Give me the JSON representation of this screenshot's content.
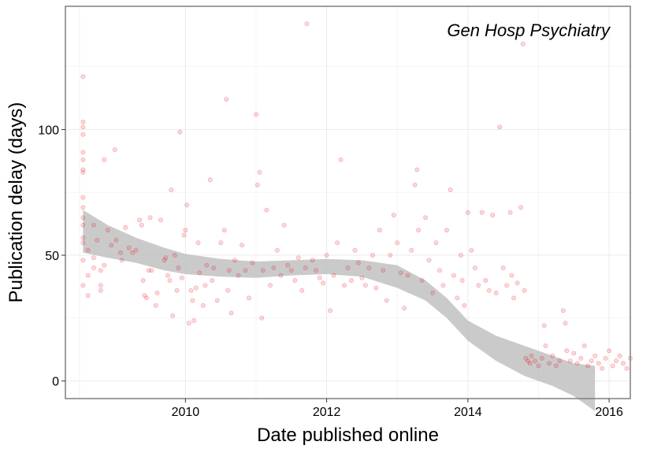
{
  "chart_data": {
    "type": "scatter",
    "title": "",
    "annotation": "Gen Hosp Psychiatry",
    "xlabel": "Date published online",
    "ylabel": "Publication delay (days)",
    "xlim": [
      2008.3,
      2016.3
    ],
    "ylim": [
      -7,
      149
    ],
    "x_ticks": [
      2010,
      2012,
      2014,
      2016
    ],
    "y_ticks": [
      0,
      50,
      100
    ],
    "x_tick_labels": [
      "2010",
      "2012",
      "2014",
      "2016"
    ],
    "y_tick_labels": [
      "0",
      "50",
      "100"
    ],
    "grid": true,
    "point_color": "#e8000b",
    "point_opacity": 0.15,
    "ribbon_color": "#bdbdbd",
    "legend": "none",
    "smooth_band": {
      "x": [
        2008.55,
        2008.9,
        2009.3,
        2009.7,
        2010.0,
        2010.5,
        2011.0,
        2011.5,
        2012.0,
        2012.5,
        2013.0,
        2013.4,
        2013.7,
        2014.0,
        2014.4,
        2014.8,
        2015.2,
        2015.5,
        2015.8
      ],
      "upper": [
        68,
        62,
        57,
        53,
        50.5,
        48.5,
        47.5,
        48,
        48.5,
        48,
        46,
        40,
        33,
        24,
        18,
        14,
        10,
        7,
        6
      ],
      "lower": [
        51,
        49,
        47,
        44,
        42.5,
        41.5,
        41,
        42,
        42.5,
        41.5,
        37,
        32,
        25,
        16,
        8,
        2,
        -2,
        -6,
        -12
      ]
    },
    "points": [
      [
        2008.55,
        121
      ],
      [
        2008.55,
        103
      ],
      [
        2008.55,
        101
      ],
      [
        2008.55,
        98
      ],
      [
        2008.55,
        91
      ],
      [
        2008.55,
        88
      ],
      [
        2008.55,
        84
      ],
      [
        2008.55,
        83
      ],
      [
        2008.55,
        73
      ],
      [
        2008.55,
        69
      ],
      [
        2008.55,
        65
      ],
      [
        2008.55,
        62
      ],
      [
        2008.55,
        57
      ],
      [
        2008.55,
        55
      ],
      [
        2008.55,
        48
      ],
      [
        2008.55,
        38
      ],
      [
        2008.62,
        52
      ],
      [
        2008.62,
        42
      ],
      [
        2008.62,
        34
      ],
      [
        2008.7,
        49
      ],
      [
        2008.7,
        45
      ],
      [
        2008.7,
        62
      ],
      [
        2008.75,
        56
      ],
      [
        2008.8,
        36
      ],
      [
        2008.8,
        38
      ],
      [
        2008.8,
        44
      ],
      [
        2008.85,
        46
      ],
      [
        2008.85,
        88
      ],
      [
        2008.9,
        60
      ],
      [
        2008.95,
        54
      ],
      [
        2009.0,
        92
      ],
      [
        2009.02,
        56
      ],
      [
        2009.08,
        51
      ],
      [
        2009.1,
        48
      ],
      [
        2009.15,
        61
      ],
      [
        2009.2,
        53
      ],
      [
        2009.25,
        51
      ],
      [
        2009.3,
        52
      ],
      [
        2009.35,
        64
      ],
      [
        2009.38,
        62
      ],
      [
        2009.4,
        40
      ],
      [
        2009.42,
        34
      ],
      [
        2009.45,
        33
      ],
      [
        2009.48,
        44
      ],
      [
        2009.5,
        65
      ],
      [
        2009.52,
        44
      ],
      [
        2009.58,
        30
      ],
      [
        2009.6,
        35
      ],
      [
        2009.65,
        64
      ],
      [
        2009.7,
        48
      ],
      [
        2009.72,
        49
      ],
      [
        2009.75,
        42
      ],
      [
        2009.78,
        40
      ],
      [
        2009.8,
        76
      ],
      [
        2009.82,
        26
      ],
      [
        2009.85,
        50
      ],
      [
        2009.88,
        36
      ],
      [
        2009.9,
        45
      ],
      [
        2009.92,
        99
      ],
      [
        2009.95,
        41
      ],
      [
        2009.98,
        58
      ],
      [
        2010.0,
        60
      ],
      [
        2010.02,
        70
      ],
      [
        2010.05,
        23
      ],
      [
        2010.08,
        36
      ],
      [
        2010.1,
        32
      ],
      [
        2010.12,
        24
      ],
      [
        2010.15,
        37
      ],
      [
        2010.18,
        55
      ],
      [
        2010.2,
        43
      ],
      [
        2010.25,
        30
      ],
      [
        2010.28,
        38
      ],
      [
        2010.3,
        46
      ],
      [
        2010.35,
        80
      ],
      [
        2010.38,
        40
      ],
      [
        2010.4,
        45
      ],
      [
        2010.45,
        32
      ],
      [
        2010.5,
        55
      ],
      [
        2010.55,
        60
      ],
      [
        2010.58,
        112
      ],
      [
        2010.6,
        36
      ],
      [
        2010.62,
        44
      ],
      [
        2010.65,
        27
      ],
      [
        2010.7,
        48
      ],
      [
        2010.75,
        42
      ],
      [
        2010.8,
        54
      ],
      [
        2010.85,
        44
      ],
      [
        2010.9,
        33
      ],
      [
        2010.95,
        47
      ],
      [
        2011.0,
        106
      ],
      [
        2011.02,
        78
      ],
      [
        2011.05,
        83
      ],
      [
        2011.08,
        25
      ],
      [
        2011.1,
        44
      ],
      [
        2011.15,
        68
      ],
      [
        2011.2,
        38
      ],
      [
        2011.25,
        45
      ],
      [
        2011.3,
        52
      ],
      [
        2011.35,
        42
      ],
      [
        2011.4,
        62
      ],
      [
        2011.45,
        46
      ],
      [
        2011.5,
        44
      ],
      [
        2011.55,
        40
      ],
      [
        2011.6,
        49
      ],
      [
        2011.65,
        36
      ],
      [
        2011.7,
        45
      ],
      [
        2011.72,
        142
      ],
      [
        2011.8,
        48
      ],
      [
        2011.85,
        44
      ],
      [
        2011.9,
        41
      ],
      [
        2011.95,
        39
      ],
      [
        2012.0,
        50
      ],
      [
        2012.05,
        28
      ],
      [
        2012.1,
        42
      ],
      [
        2012.15,
        55
      ],
      [
        2012.2,
        88
      ],
      [
        2012.25,
        38
      ],
      [
        2012.3,
        45
      ],
      [
        2012.35,
        40
      ],
      [
        2012.4,
        52
      ],
      [
        2012.45,
        47
      ],
      [
        2012.5,
        41
      ],
      [
        2012.55,
        38
      ],
      [
        2012.6,
        45
      ],
      [
        2012.65,
        50
      ],
      [
        2012.7,
        37
      ],
      [
        2012.75,
        60
      ],
      [
        2012.8,
        44
      ],
      [
        2012.85,
        32
      ],
      [
        2012.9,
        50
      ],
      [
        2012.95,
        66
      ],
      [
        2013.0,
        55
      ],
      [
        2013.05,
        43
      ],
      [
        2013.1,
        29
      ],
      [
        2013.15,
        42
      ],
      [
        2013.2,
        52
      ],
      [
        2013.25,
        78
      ],
      [
        2013.28,
        84
      ],
      [
        2013.3,
        60
      ],
      [
        2013.35,
        40
      ],
      [
        2013.4,
        65
      ],
      [
        2013.45,
        48
      ],
      [
        2013.5,
        35
      ],
      [
        2013.55,
        55
      ],
      [
        2013.6,
        44
      ],
      [
        2013.65,
        38
      ],
      [
        2013.7,
        60
      ],
      [
        2013.75,
        76
      ],
      [
        2013.8,
        42
      ],
      [
        2013.85,
        33
      ],
      [
        2013.9,
        50
      ],
      [
        2013.92,
        40
      ],
      [
        2013.95,
        30
      ],
      [
        2014.0,
        67
      ],
      [
        2014.05,
        52
      ],
      [
        2014.1,
        45
      ],
      [
        2014.15,
        38
      ],
      [
        2014.2,
        67
      ],
      [
        2014.25,
        40
      ],
      [
        2014.3,
        36
      ],
      [
        2014.35,
        66
      ],
      [
        2014.4,
        35
      ],
      [
        2014.45,
        101
      ],
      [
        2014.5,
        45
      ],
      [
        2014.55,
        38
      ],
      [
        2014.6,
        67
      ],
      [
        2014.62,
        42
      ],
      [
        2014.65,
        33
      ],
      [
        2014.7,
        39
      ],
      [
        2014.75,
        69
      ],
      [
        2014.78,
        134
      ],
      [
        2014.8,
        36
      ],
      [
        2014.82,
        9
      ],
      [
        2014.85,
        8
      ],
      [
        2014.88,
        7
      ],
      [
        2014.9,
        10
      ],
      [
        2014.95,
        8
      ],
      [
        2015.0,
        6
      ],
      [
        2015.05,
        9
      ],
      [
        2015.08,
        22
      ],
      [
        2015.1,
        14
      ],
      [
        2015.15,
        7
      ],
      [
        2015.2,
        10
      ],
      [
        2015.25,
        6
      ],
      [
        2015.3,
        8
      ],
      [
        2015.35,
        28
      ],
      [
        2015.38,
        23
      ],
      [
        2015.4,
        12
      ],
      [
        2015.45,
        8
      ],
      [
        2015.5,
        11
      ],
      [
        2015.55,
        7
      ],
      [
        2015.6,
        9
      ],
      [
        2015.65,
        14
      ],
      [
        2015.7,
        6
      ],
      [
        2015.75,
        8
      ],
      [
        2015.8,
        10
      ],
      [
        2015.85,
        7
      ],
      [
        2015.9,
        5
      ],
      [
        2015.95,
        9
      ],
      [
        2016.0,
        12
      ],
      [
        2016.05,
        6
      ],
      [
        2016.1,
        8
      ],
      [
        2016.15,
        10
      ],
      [
        2016.2,
        7
      ],
      [
        2016.25,
        5
      ],
      [
        2016.3,
        9
      ],
      [
        2016.35,
        6
      ],
      [
        2016.4,
        11
      ],
      [
        2016.45,
        8
      ]
    ]
  }
}
